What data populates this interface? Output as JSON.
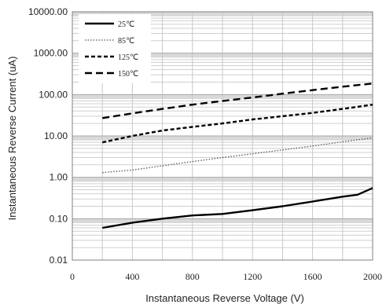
{
  "chart_data": {
    "type": "line",
    "title": "",
    "xlabel": "Instantaneous  Reverse Voltage (V)",
    "ylabel": "Instantaneous Reverse Current (uA)",
    "xlim": [
      0,
      2000
    ],
    "ylim": [
      0.01,
      10000
    ],
    "y_scale": "log",
    "x_ticks": [
      "0",
      "400",
      "800",
      "1200",
      "1600",
      "2000"
    ],
    "y_ticks": [
      "0.01",
      "0.10",
      "1.00",
      "10.00",
      "100.00",
      "1000.00",
      "10000.00"
    ],
    "grid": true,
    "legend_position": "top-left",
    "series": [
      {
        "name": "25℃",
        "style": "solid",
        "color": "#000000",
        "x": [
          200,
          400,
          600,
          800,
          1000,
          1200,
          1400,
          1600,
          1800,
          1900,
          2000
        ],
        "y": [
          0.06,
          0.08,
          0.1,
          0.12,
          0.13,
          0.16,
          0.2,
          0.26,
          0.34,
          0.38,
          0.55
        ]
      },
      {
        "name": "85℃",
        "style": "dotted",
        "color": "#555555",
        "x": [
          200,
          400,
          600,
          800,
          1000,
          1200,
          1400,
          1600,
          1800,
          2000
        ],
        "y": [
          1.3,
          1.5,
          1.9,
          2.4,
          3.0,
          3.7,
          4.6,
          5.7,
          7.2,
          9.0
        ]
      },
      {
        "name": "125℃",
        "style": "short-dash",
        "color": "#000000",
        "x": [
          200,
          400,
          600,
          800,
          1000,
          1200,
          1400,
          1600,
          1800,
          2000
        ],
        "y": [
          7.0,
          10.0,
          13.5,
          16.5,
          20.0,
          25.0,
          30.0,
          36.0,
          45.0,
          57.0
        ]
      },
      {
        "name": "150℃",
        "style": "long-dash",
        "color": "#000000",
        "x": [
          200,
          400,
          600,
          800,
          1000,
          1200,
          1400,
          1600,
          1800,
          2000
        ],
        "y": [
          27,
          35,
          45,
          57,
          70,
          85,
          105,
          128,
          155,
          185
        ]
      }
    ]
  }
}
